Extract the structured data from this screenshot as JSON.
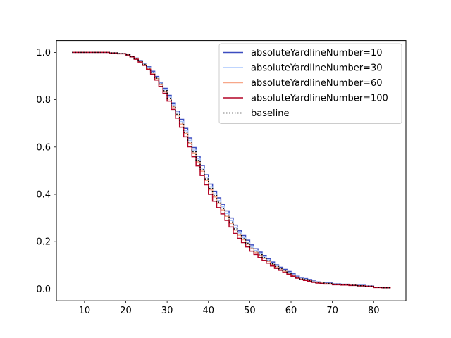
{
  "chart_data": {
    "type": "line",
    "subtype": "step",
    "title": "",
    "xlabel": "",
    "ylabel": "",
    "xlim": [
      3.2,
      87.8
    ],
    "ylim": [
      -0.05,
      1.05
    ],
    "x_ticks": [
      10,
      20,
      30,
      40,
      50,
      60,
      70,
      80
    ],
    "y_ticks": [
      0.0,
      0.2,
      0.4,
      0.6,
      0.8,
      1.0
    ],
    "x_tick_labels": [
      "10",
      "20",
      "30",
      "40",
      "50",
      "60",
      "70",
      "80"
    ],
    "y_tick_labels": [
      "0.0",
      "0.2",
      "0.4",
      "0.6",
      "0.8",
      "1.0"
    ],
    "grid": false,
    "legend_position": "top-right",
    "x": [
      7,
      14,
      16,
      18,
      20,
      21,
      22,
      23,
      24,
      25,
      26,
      27,
      28,
      29,
      30,
      31,
      32,
      33,
      34,
      35,
      36,
      37,
      38,
      39,
      40,
      41,
      42,
      43,
      44,
      45,
      46,
      47,
      48,
      49,
      50,
      51,
      52,
      53,
      54,
      55,
      56,
      57,
      58,
      59,
      60,
      61,
      62,
      63,
      64,
      65,
      66,
      67,
      68,
      70,
      72,
      74,
      76,
      78,
      80,
      82,
      84
    ],
    "series": [
      {
        "name": "absoluteYardlineNumber=10",
        "color": "#3b4cc0",
        "linestyle": "solid",
        "values": [
          1.0,
          1.0,
          0.998,
          0.995,
          0.99,
          0.984,
          0.976,
          0.965,
          0.953,
          0.939,
          0.92,
          0.898,
          0.874,
          0.848,
          0.818,
          0.786,
          0.752,
          0.717,
          0.679,
          0.638,
          0.598,
          0.561,
          0.522,
          0.483,
          0.443,
          0.413,
          0.385,
          0.358,
          0.33,
          0.3,
          0.27,
          0.246,
          0.226,
          0.206,
          0.186,
          0.17,
          0.156,
          0.142,
          0.128,
          0.114,
          0.102,
          0.092,
          0.083,
          0.074,
          0.064,
          0.054,
          0.046,
          0.044,
          0.04,
          0.034,
          0.03,
          0.028,
          0.026,
          0.022,
          0.02,
          0.018,
          0.016,
          0.014,
          0.008,
          0.006,
          0.004
        ]
      },
      {
        "name": "absoluteYardlineNumber=30",
        "color": "#aac7fd",
        "linestyle": "solid",
        "values": [
          1.0,
          1.0,
          0.998,
          0.995,
          0.99,
          0.983,
          0.975,
          0.963,
          0.951,
          0.936,
          0.916,
          0.894,
          0.869,
          0.842,
          0.811,
          0.778,
          0.744,
          0.708,
          0.669,
          0.628,
          0.587,
          0.55,
          0.511,
          0.472,
          0.432,
          0.402,
          0.374,
          0.347,
          0.319,
          0.289,
          0.26,
          0.237,
          0.217,
          0.198,
          0.178,
          0.163,
          0.149,
          0.136,
          0.122,
          0.109,
          0.097,
          0.088,
          0.079,
          0.07,
          0.061,
          0.051,
          0.044,
          0.041,
          0.037,
          0.032,
          0.028,
          0.026,
          0.024,
          0.021,
          0.019,
          0.017,
          0.015,
          0.013,
          0.007,
          0.005,
          0.004
        ]
      },
      {
        "name": "absoluteYardlineNumber=60",
        "color": "#f7a789",
        "linestyle": "solid",
        "values": [
          1.0,
          1.0,
          0.998,
          0.995,
          0.99,
          0.982,
          0.973,
          0.961,
          0.948,
          0.932,
          0.912,
          0.889,
          0.863,
          0.835,
          0.803,
          0.769,
          0.734,
          0.697,
          0.657,
          0.616,
          0.575,
          0.537,
          0.498,
          0.459,
          0.419,
          0.389,
          0.361,
          0.334,
          0.307,
          0.277,
          0.249,
          0.227,
          0.208,
          0.189,
          0.17,
          0.155,
          0.142,
          0.129,
          0.116,
          0.104,
          0.093,
          0.084,
          0.075,
          0.067,
          0.058,
          0.049,
          0.042,
          0.039,
          0.035,
          0.03,
          0.027,
          0.025,
          0.023,
          0.02,
          0.018,
          0.016,
          0.014,
          0.012,
          0.007,
          0.005,
          0.003
        ]
      },
      {
        "name": "absoluteYardlineNumber=100",
        "color": "#b40426",
        "linestyle": "solid",
        "values": [
          1.0,
          1.0,
          0.997,
          0.994,
          0.989,
          0.981,
          0.971,
          0.959,
          0.945,
          0.928,
          0.907,
          0.883,
          0.856,
          0.827,
          0.794,
          0.759,
          0.722,
          0.684,
          0.643,
          0.601,
          0.559,
          0.52,
          0.48,
          0.44,
          0.4,
          0.371,
          0.344,
          0.317,
          0.29,
          0.262,
          0.235,
          0.214,
          0.196,
          0.178,
          0.16,
          0.146,
          0.133,
          0.121,
          0.109,
          0.097,
          0.087,
          0.079,
          0.07,
          0.062,
          0.054,
          0.046,
          0.039,
          0.036,
          0.033,
          0.028,
          0.025,
          0.023,
          0.021,
          0.018,
          0.017,
          0.015,
          0.013,
          0.011,
          0.006,
          0.005,
          0.003
        ]
      },
      {
        "name": "baseline",
        "color": "#000000",
        "linestyle": "dotted",
        "values": [
          1.0,
          1.0,
          0.998,
          0.995,
          0.99,
          0.983,
          0.974,
          0.962,
          0.949,
          0.934,
          0.914,
          0.891,
          0.866,
          0.838,
          0.806,
          0.773,
          0.738,
          0.702,
          0.662,
          0.621,
          0.58,
          0.543,
          0.504,
          0.465,
          0.425,
          0.395,
          0.367,
          0.34,
          0.312,
          0.283,
          0.254,
          0.232,
          0.212,
          0.193,
          0.174,
          0.159,
          0.145,
          0.132,
          0.119,
          0.106,
          0.095,
          0.086,
          0.077,
          0.068,
          0.059,
          0.05,
          0.043,
          0.04,
          0.036,
          0.031,
          0.027,
          0.025,
          0.023,
          0.02,
          0.018,
          0.016,
          0.014,
          0.012,
          0.007,
          0.005,
          0.003
        ]
      }
    ]
  }
}
